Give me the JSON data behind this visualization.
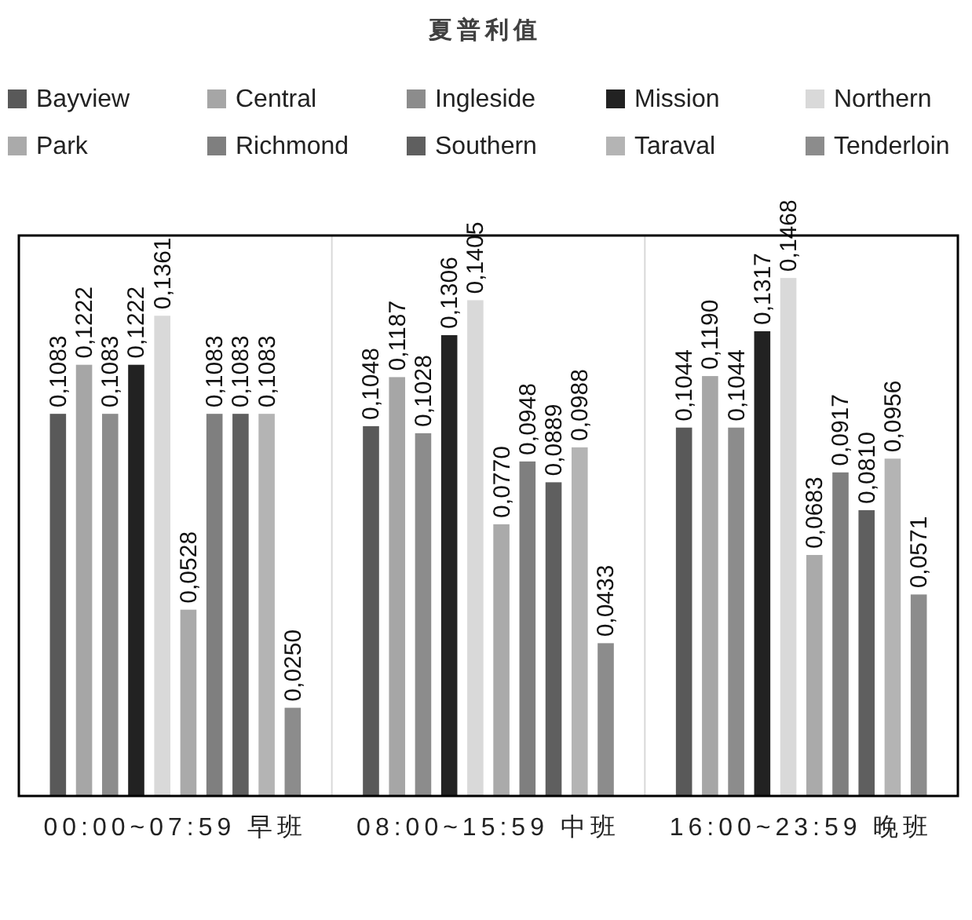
{
  "chart_data": {
    "type": "bar",
    "title": "夏普利值",
    "categories": [
      "00:00~07:59 早班",
      "08:00~15:59 中班",
      "16:00~23:59 晚班"
    ],
    "legend": "top",
    "grid": "x",
    "series": [
      {
        "name": "Bayview",
        "color": "#595959",
        "values": [
          0.1083,
          0.1048,
          0.1044
        ],
        "value_labels": [
          "0,1083",
          "0,1048",
          "0,1044"
        ]
      },
      {
        "name": "Central",
        "color": "#a6a6a6",
        "values": [
          0.1222,
          0.1187,
          0.119
        ],
        "value_labels": [
          "0,1222",
          "0,1187",
          "0,1190"
        ]
      },
      {
        "name": "Ingleside",
        "color": "#8c8c8c",
        "values": [
          0.1083,
          0.1028,
          0.1044
        ],
        "value_labels": [
          "0,1083",
          "0,1028",
          "0,1044"
        ]
      },
      {
        "name": "Mission",
        "color": "#222222",
        "values": [
          0.1222,
          0.1306,
          0.1317
        ],
        "value_labels": [
          "0,1222",
          "0,1306",
          "0,1317"
        ]
      },
      {
        "name": "Northern",
        "color": "#d9d9d9",
        "values": [
          0.1361,
          0.1405,
          0.1468
        ],
        "value_labels": [
          "0,1361",
          "0,1405",
          "0,1468"
        ]
      },
      {
        "name": "Park",
        "color": "#aaaaaa",
        "values": [
          0.0528,
          0.077,
          0.0683
        ],
        "value_labels": [
          "0,0528",
          "0,0770",
          "0,0683"
        ]
      },
      {
        "name": "Richmond",
        "color": "#7f7f7f",
        "values": [
          0.1083,
          0.0948,
          0.0917
        ],
        "value_labels": [
          "0,1083",
          "0,0948",
          "0,0917"
        ]
      },
      {
        "name": "Southern",
        "color": "#5f5f5f",
        "values": [
          0.1083,
          0.0889,
          0.081
        ],
        "value_labels": [
          "0,1083",
          "0,0889",
          "0,0810"
        ]
      },
      {
        "name": "Taraval",
        "color": "#b4b4b4",
        "values": [
          0.1083,
          0.0988,
          0.0956
        ],
        "value_labels": [
          "0,1083",
          "0,0988",
          "0,0956"
        ]
      },
      {
        "name": "Tenderloin",
        "color": "#8c8c8c",
        "values": [
          0.025,
          0.0433,
          0.0571
        ],
        "value_labels": [
          "0,0250",
          "0,0433",
          "0,0571"
        ]
      }
    ]
  }
}
